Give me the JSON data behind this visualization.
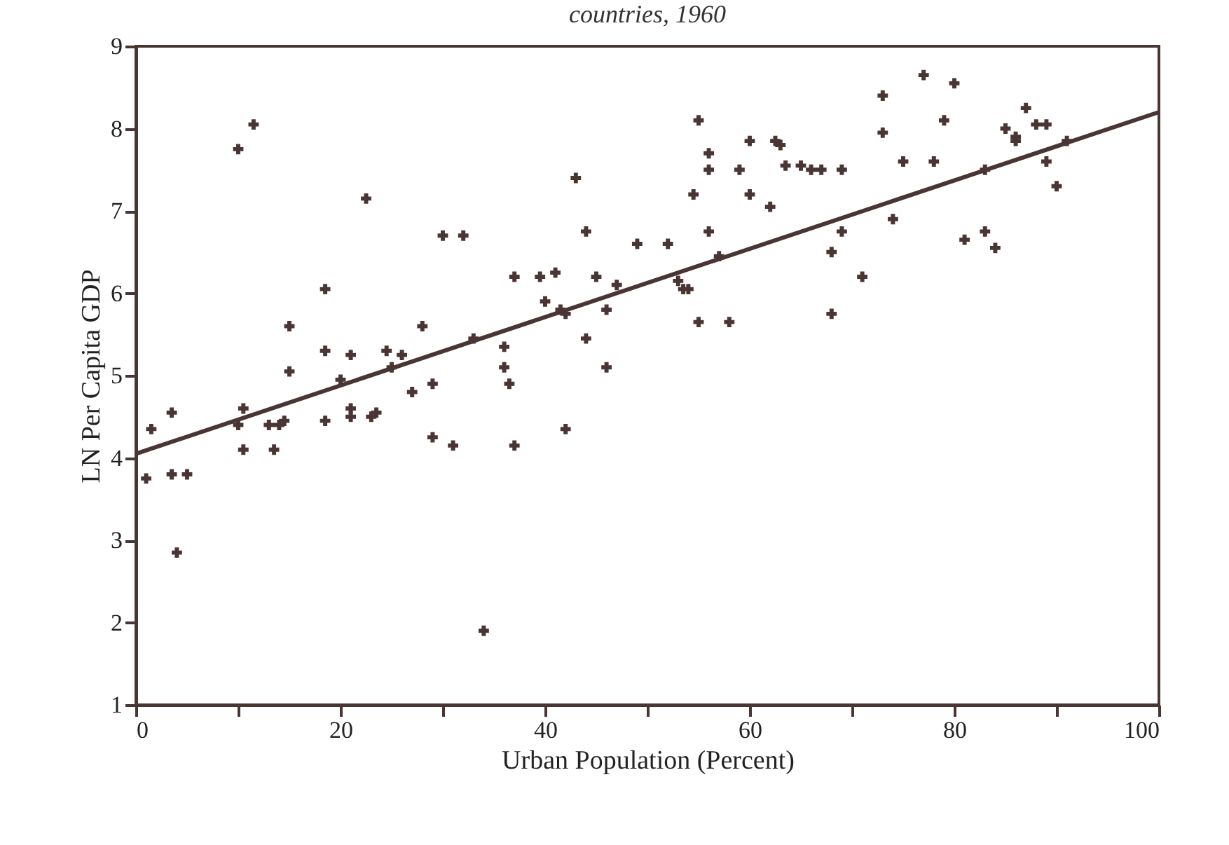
{
  "chart_data": {
    "type": "scatter",
    "title": "countries, 1960",
    "xlabel": "Urban Population (Percent)",
    "ylabel": "LN Per Capita GDP",
    "xlim": [
      0,
      100
    ],
    "ylim": [
      1,
      9
    ],
    "xticks": [
      0,
      {
        "value": 10,
        "label": null
      },
      20,
      {
        "value": 30,
        "label": null
      },
      40,
      {
        "value": 50,
        "label": null
      },
      60,
      {
        "value": 70,
        "label": null
      },
      80,
      {
        "value": 90,
        "label": null
      },
      100
    ],
    "yticks": [
      1,
      2,
      3,
      4,
      5,
      6,
      7,
      8,
      9
    ],
    "grid": false,
    "series": [
      {
        "marker": "cross",
        "color": "#4a3535",
        "x": [
          1,
          1.5,
          3.5,
          3.5,
          5,
          4,
          10,
          11.5,
          10,
          10.5,
          10.5,
          13,
          13.5,
          14,
          14.5,
          15,
          15,
          18.5,
          18.5,
          18.5,
          20,
          21,
          21,
          21,
          22.5,
          23,
          23.5,
          24.5,
          25,
          26,
          27,
          28,
          29,
          29,
          30,
          31,
          32,
          33,
          34,
          36,
          36.5,
          36,
          37,
          37,
          39.5,
          40,
          41,
          41.5,
          42,
          42,
          43,
          44,
          44,
          45,
          46,
          46,
          47,
          49,
          52,
          53,
          53.5,
          54,
          54.5,
          55,
          55,
          56,
          56,
          56,
          57,
          58,
          59,
          60,
          60,
          62,
          62.5,
          63,
          63.5,
          65,
          66,
          67,
          68,
          68,
          69,
          69,
          71,
          73,
          73,
          74,
          75,
          77,
          78,
          79,
          80,
          81,
          83,
          83,
          84,
          85,
          86,
          86,
          87,
          88,
          89,
          89,
          90,
          91
        ],
        "values": [
          3.75,
          4.35,
          4.55,
          3.8,
          3.8,
          2.85,
          7.75,
          8.05,
          4.4,
          4.6,
          4.1,
          4.4,
          4.1,
          4.4,
          4.45,
          5.05,
          5.6,
          6.05,
          5.3,
          4.45,
          4.95,
          5.25,
          4.6,
          4.5,
          7.15,
          4.5,
          4.55,
          5.3,
          5.1,
          5.25,
          4.8,
          5.6,
          4.9,
          4.25,
          6.7,
          4.15,
          6.7,
          5.45,
          1.9,
          5.1,
          4.9,
          5.35,
          6.2,
          4.15,
          6.2,
          5.9,
          6.25,
          5.8,
          4.35,
          5.75,
          7.4,
          6.75,
          5.45,
          6.2,
          5.8,
          5.1,
          6.1,
          6.6,
          6.6,
          6.15,
          6.05,
          6.05,
          7.2,
          8.1,
          5.65,
          7.7,
          7.5,
          6.75,
          6.45,
          5.65,
          7.5,
          7.85,
          7.2,
          7.05,
          7.85,
          7.8,
          7.55,
          7.55,
          7.5,
          7.5,
          5.75,
          6.5,
          6.75,
          7.5,
          6.2,
          8.4,
          7.95,
          6.9,
          7.6,
          8.65,
          7.6,
          8.1,
          8.55,
          6.65,
          6.75,
          7.5,
          6.55,
          8.0,
          7.9,
          7.85,
          8.25,
          8.05,
          8.05,
          7.6,
          7.3,
          7.85
        ]
      },
      {
        "type": "line",
        "color": "#4a3535",
        "x": [
          0,
          100
        ],
        "values": [
          4.05,
          8.2
        ]
      }
    ]
  }
}
